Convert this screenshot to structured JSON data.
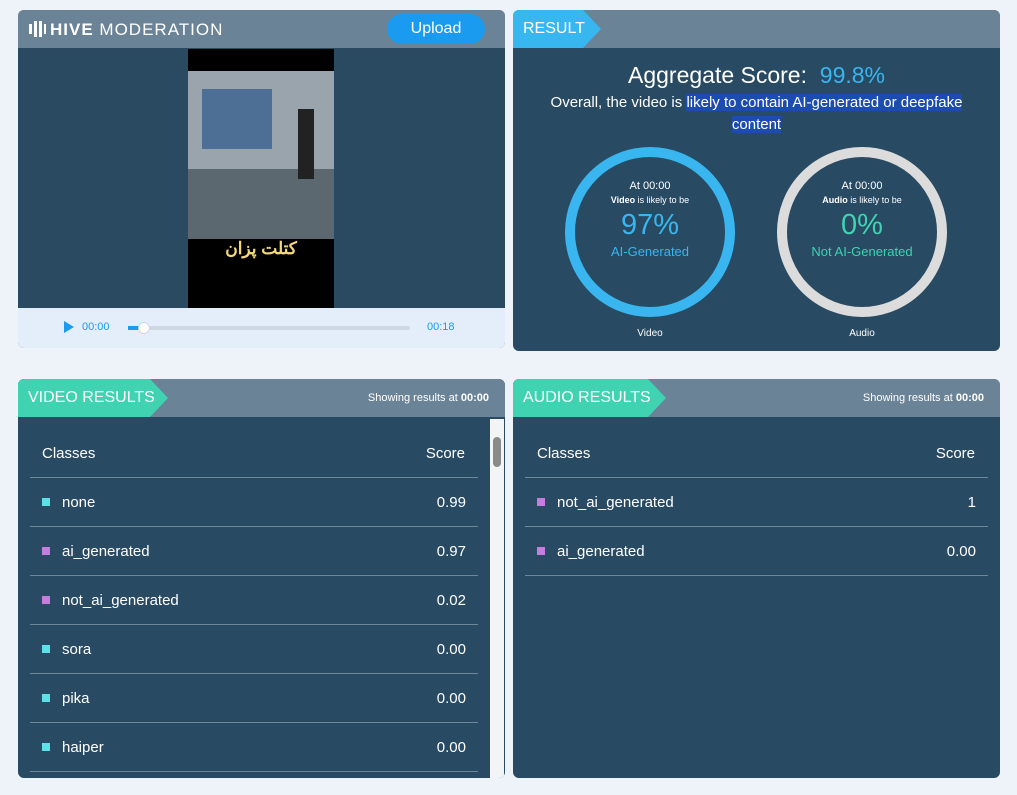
{
  "header": {
    "brand_bold": "HIVE",
    "brand": "MODERATION",
    "upload": "Upload"
  },
  "player": {
    "caption": "کتلت پزان",
    "time_current": "00:00",
    "time_total": "00:18"
  },
  "result": {
    "tab": "RESULT",
    "aggregate_label": "Aggregate Score:",
    "aggregate_value": "99.8%",
    "summary_prefix": "Overall, the video is",
    "summary_highlight": "likely to contain AI-generated or deepfake content",
    "gauges": [
      {
        "at": "At 00:00",
        "kind": "Video",
        "likely": "is likely to be",
        "percent": "97%",
        "verdict": "AI-Generated",
        "label": "Video",
        "color": "#39b6ef",
        "text_color": "#39b6ef"
      },
      {
        "at": "At 00:00",
        "kind": "Audio",
        "likely": "is likely to be",
        "percent": "0%",
        "verdict": "Not AI-Generated",
        "label": "Audio",
        "color": "#dcdcdc",
        "text_color": "#3fd3b2"
      }
    ]
  },
  "video_results": {
    "tab": "VIDEO RESULTS",
    "showing_prefix": "Showing results at",
    "showing_time": "00:00",
    "columns": [
      "Classes",
      "Score"
    ],
    "rows": [
      {
        "class": "none",
        "score": "0.99",
        "color": "#5ee0e8"
      },
      {
        "class": "ai_generated",
        "score": "0.97",
        "color": "#c77ce0"
      },
      {
        "class": "not_ai_generated",
        "score": "0.02",
        "color": "#c77ce0"
      },
      {
        "class": "sora",
        "score": "0.00",
        "color": "#5ee0e8"
      },
      {
        "class": "pika",
        "score": "0.00",
        "color": "#5ee0e8"
      },
      {
        "class": "haiper",
        "score": "0.00",
        "color": "#5ee0e8"
      }
    ]
  },
  "audio_results": {
    "tab": "AUDIO RESULTS",
    "showing_prefix": "Showing results at",
    "showing_time": "00:00",
    "columns": [
      "Classes",
      "Score"
    ],
    "rows": [
      {
        "class": "not_ai_generated",
        "score": "1",
        "color": "#c77ce0"
      },
      {
        "class": "ai_generated",
        "score": "0.00",
        "color": "#c77ce0"
      }
    ]
  }
}
